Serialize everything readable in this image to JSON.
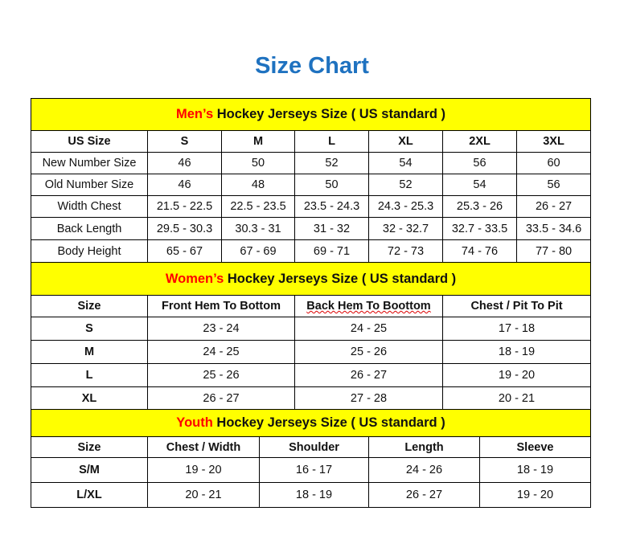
{
  "title": "Size Chart",
  "colors": {
    "title": "#1f72c0",
    "header_bg": "#ffff00",
    "highlight": "#ff0000"
  },
  "men": {
    "header_red": "Men’s",
    "header_rest": " Hockey Jerseys Size ( US standard )",
    "columns": [
      "US Size",
      "S",
      "M",
      "L",
      "XL",
      "2XL",
      "3XL"
    ],
    "rows": [
      [
        "New Number Size",
        "46",
        "50",
        "52",
        "54",
        "56",
        "60"
      ],
      [
        "Old Number Size",
        "46",
        "48",
        "50",
        "52",
        "54",
        "56"
      ],
      [
        "Width Chest",
        "21.5 - 22.5",
        "22.5 - 23.5",
        "23.5 - 24.3",
        "24.3 - 25.3",
        "25.3 - 26",
        "26 - 27"
      ],
      [
        "Back Length",
        "29.5 - 30.3",
        "30.3 - 31",
        "31 - 32",
        "32 - 32.7",
        "32.7 - 33.5",
        "33.5 - 34.6"
      ],
      [
        "Body Height",
        "65 - 67",
        "67 - 69",
        "69 - 71",
        "72 - 73",
        "74 - 76",
        "77 - 80"
      ]
    ]
  },
  "women": {
    "header_red": "Women’s",
    "header_rest": " Hockey Jerseys Size ( US standard )",
    "columns": [
      "Size",
      "Front Hem To Bottom",
      "Back Hem To Boottom",
      "Chest / Pit To Pit"
    ],
    "rows": [
      [
        "S",
        "23 - 24",
        "24 - 25",
        "17 - 18"
      ],
      [
        "M",
        "24 - 25",
        "25 - 26",
        "18 - 19"
      ],
      [
        "L",
        "25 - 26",
        "26 - 27",
        "19 - 20"
      ],
      [
        "XL",
        "26 - 27",
        "27 - 28",
        "20 - 21"
      ]
    ]
  },
  "youth": {
    "header_red": "Youth",
    "header_rest": " Hockey Jerseys Size ( US standard )",
    "columns": [
      "Size",
      "Chest / Width",
      "Shoulder",
      "Length",
      "Sleeve"
    ],
    "rows": [
      [
        "S/M",
        "19 - 20",
        "16 - 17",
        "24 - 26",
        "18 - 19"
      ],
      [
        "L/XL",
        "20 - 21",
        "18 - 19",
        "26 - 27",
        "19 - 20"
      ]
    ]
  }
}
